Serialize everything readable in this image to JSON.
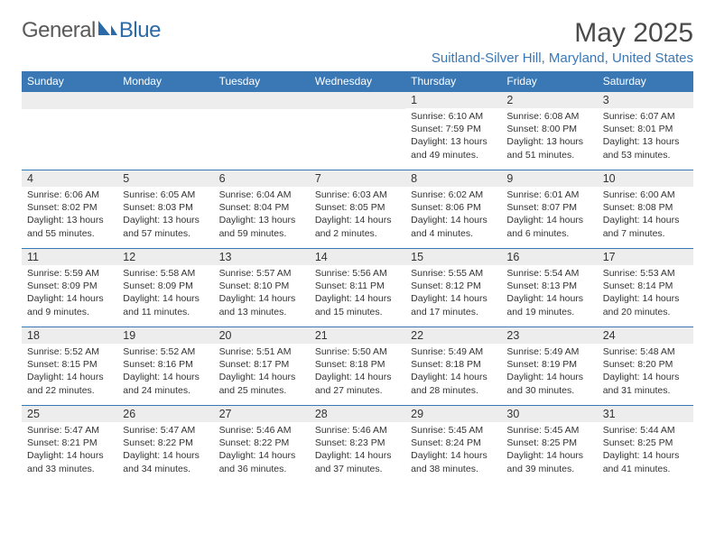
{
  "logo": {
    "text1": "General",
    "text2": "Blue"
  },
  "title": "May 2025",
  "location": "Suitland-Silver Hill, Maryland, United States",
  "colors": {
    "header_bar": "#3a78b5",
    "daynum_bg": "#ededed",
    "text": "#333333",
    "logo_gray": "#5a5a5a",
    "logo_blue": "#2b6aa8"
  },
  "weekdays": [
    "Sunday",
    "Monday",
    "Tuesday",
    "Wednesday",
    "Thursday",
    "Friday",
    "Saturday"
  ],
  "weeks": [
    [
      {
        "n": "",
        "l": [
          "",
          "",
          "",
          ""
        ]
      },
      {
        "n": "",
        "l": [
          "",
          "",
          "",
          ""
        ]
      },
      {
        "n": "",
        "l": [
          "",
          "",
          "",
          ""
        ]
      },
      {
        "n": "",
        "l": [
          "",
          "",
          "",
          ""
        ]
      },
      {
        "n": "1",
        "l": [
          "Sunrise: 6:10 AM",
          "Sunset: 7:59 PM",
          "Daylight: 13 hours",
          "and 49 minutes."
        ]
      },
      {
        "n": "2",
        "l": [
          "Sunrise: 6:08 AM",
          "Sunset: 8:00 PM",
          "Daylight: 13 hours",
          "and 51 minutes."
        ]
      },
      {
        "n": "3",
        "l": [
          "Sunrise: 6:07 AM",
          "Sunset: 8:01 PM",
          "Daylight: 13 hours",
          "and 53 minutes."
        ]
      }
    ],
    [
      {
        "n": "4",
        "l": [
          "Sunrise: 6:06 AM",
          "Sunset: 8:02 PM",
          "Daylight: 13 hours",
          "and 55 minutes."
        ]
      },
      {
        "n": "5",
        "l": [
          "Sunrise: 6:05 AM",
          "Sunset: 8:03 PM",
          "Daylight: 13 hours",
          "and 57 minutes."
        ]
      },
      {
        "n": "6",
        "l": [
          "Sunrise: 6:04 AM",
          "Sunset: 8:04 PM",
          "Daylight: 13 hours",
          "and 59 minutes."
        ]
      },
      {
        "n": "7",
        "l": [
          "Sunrise: 6:03 AM",
          "Sunset: 8:05 PM",
          "Daylight: 14 hours",
          "and 2 minutes."
        ]
      },
      {
        "n": "8",
        "l": [
          "Sunrise: 6:02 AM",
          "Sunset: 8:06 PM",
          "Daylight: 14 hours",
          "and 4 minutes."
        ]
      },
      {
        "n": "9",
        "l": [
          "Sunrise: 6:01 AM",
          "Sunset: 8:07 PM",
          "Daylight: 14 hours",
          "and 6 minutes."
        ]
      },
      {
        "n": "10",
        "l": [
          "Sunrise: 6:00 AM",
          "Sunset: 8:08 PM",
          "Daylight: 14 hours",
          "and 7 minutes."
        ]
      }
    ],
    [
      {
        "n": "11",
        "l": [
          "Sunrise: 5:59 AM",
          "Sunset: 8:09 PM",
          "Daylight: 14 hours",
          "and 9 minutes."
        ]
      },
      {
        "n": "12",
        "l": [
          "Sunrise: 5:58 AM",
          "Sunset: 8:09 PM",
          "Daylight: 14 hours",
          "and 11 minutes."
        ]
      },
      {
        "n": "13",
        "l": [
          "Sunrise: 5:57 AM",
          "Sunset: 8:10 PM",
          "Daylight: 14 hours",
          "and 13 minutes."
        ]
      },
      {
        "n": "14",
        "l": [
          "Sunrise: 5:56 AM",
          "Sunset: 8:11 PM",
          "Daylight: 14 hours",
          "and 15 minutes."
        ]
      },
      {
        "n": "15",
        "l": [
          "Sunrise: 5:55 AM",
          "Sunset: 8:12 PM",
          "Daylight: 14 hours",
          "and 17 minutes."
        ]
      },
      {
        "n": "16",
        "l": [
          "Sunrise: 5:54 AM",
          "Sunset: 8:13 PM",
          "Daylight: 14 hours",
          "and 19 minutes."
        ]
      },
      {
        "n": "17",
        "l": [
          "Sunrise: 5:53 AM",
          "Sunset: 8:14 PM",
          "Daylight: 14 hours",
          "and 20 minutes."
        ]
      }
    ],
    [
      {
        "n": "18",
        "l": [
          "Sunrise: 5:52 AM",
          "Sunset: 8:15 PM",
          "Daylight: 14 hours",
          "and 22 minutes."
        ]
      },
      {
        "n": "19",
        "l": [
          "Sunrise: 5:52 AM",
          "Sunset: 8:16 PM",
          "Daylight: 14 hours",
          "and 24 minutes."
        ]
      },
      {
        "n": "20",
        "l": [
          "Sunrise: 5:51 AM",
          "Sunset: 8:17 PM",
          "Daylight: 14 hours",
          "and 25 minutes."
        ]
      },
      {
        "n": "21",
        "l": [
          "Sunrise: 5:50 AM",
          "Sunset: 8:18 PM",
          "Daylight: 14 hours",
          "and 27 minutes."
        ]
      },
      {
        "n": "22",
        "l": [
          "Sunrise: 5:49 AM",
          "Sunset: 8:18 PM",
          "Daylight: 14 hours",
          "and 28 minutes."
        ]
      },
      {
        "n": "23",
        "l": [
          "Sunrise: 5:49 AM",
          "Sunset: 8:19 PM",
          "Daylight: 14 hours",
          "and 30 minutes."
        ]
      },
      {
        "n": "24",
        "l": [
          "Sunrise: 5:48 AM",
          "Sunset: 8:20 PM",
          "Daylight: 14 hours",
          "and 31 minutes."
        ]
      }
    ],
    [
      {
        "n": "25",
        "l": [
          "Sunrise: 5:47 AM",
          "Sunset: 8:21 PM",
          "Daylight: 14 hours",
          "and 33 minutes."
        ]
      },
      {
        "n": "26",
        "l": [
          "Sunrise: 5:47 AM",
          "Sunset: 8:22 PM",
          "Daylight: 14 hours",
          "and 34 minutes."
        ]
      },
      {
        "n": "27",
        "l": [
          "Sunrise: 5:46 AM",
          "Sunset: 8:22 PM",
          "Daylight: 14 hours",
          "and 36 minutes."
        ]
      },
      {
        "n": "28",
        "l": [
          "Sunrise: 5:46 AM",
          "Sunset: 8:23 PM",
          "Daylight: 14 hours",
          "and 37 minutes."
        ]
      },
      {
        "n": "29",
        "l": [
          "Sunrise: 5:45 AM",
          "Sunset: 8:24 PM",
          "Daylight: 14 hours",
          "and 38 minutes."
        ]
      },
      {
        "n": "30",
        "l": [
          "Sunrise: 5:45 AM",
          "Sunset: 8:25 PM",
          "Daylight: 14 hours",
          "and 39 minutes."
        ]
      },
      {
        "n": "31",
        "l": [
          "Sunrise: 5:44 AM",
          "Sunset: 8:25 PM",
          "Daylight: 14 hours",
          "and 41 minutes."
        ]
      }
    ]
  ]
}
